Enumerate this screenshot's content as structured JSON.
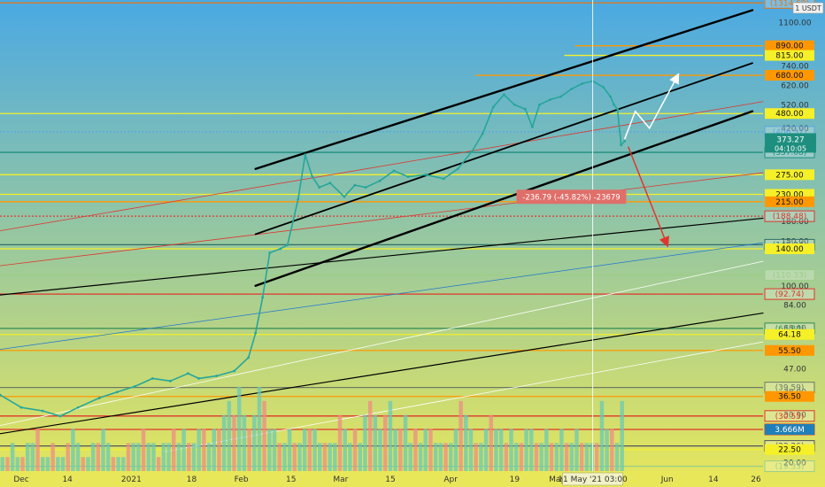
{
  "chart_data": {
    "type": "line",
    "title": "",
    "xlabel": "",
    "ylabel": "",
    "currency": "USD",
    "scale": "log",
    "ylim": [
      18.5,
      1350
    ],
    "xlim": [
      "2020-11-25",
      "2021-06-28"
    ],
    "grid": false,
    "background": {
      "top": "#4aa9e3",
      "bottom": "#e8e75a"
    },
    "x_ticks": [
      {
        "label": "Dec",
        "date": "2020-12-01"
      },
      {
        "label": "14",
        "date": "2020-12-14"
      },
      {
        "label": "2021",
        "date": "2021-01-01"
      },
      {
        "label": "18",
        "date": "2021-01-18"
      },
      {
        "label": "Feb",
        "date": "2021-02-01"
      },
      {
        "label": "15",
        "date": "2021-02-15"
      },
      {
        "label": "Mar",
        "date": "2021-03-01"
      },
      {
        "label": "15",
        "date": "2021-03-15"
      },
      {
        "label": "Apr",
        "date": "2021-04-01"
      },
      {
        "label": "19",
        "date": "2021-04-19"
      },
      {
        "label": "May",
        "date": "2021-05-01"
      },
      {
        "label": "Jun",
        "date": "2021-06-01"
      },
      {
        "label": "14",
        "date": "2021-06-14"
      },
      {
        "label": "26",
        "date": "2021-06-26"
      }
    ],
    "crosshair": {
      "date": "2021-05-11",
      "label": "11 May '21",
      "time": "03:00"
    },
    "y_ticks": [
      {
        "label": "1100.00",
        "value": 1100
      },
      {
        "label": "740.00",
        "value": 740
      },
      {
        "label": "620.00",
        "value": 620
      },
      {
        "label": "520.00",
        "value": 520
      },
      {
        "label": "420.00",
        "value": 420
      },
      {
        "label": "180.00",
        "value": 180
      },
      {
        "label": "150.00",
        "value": 150
      },
      {
        "label": "100.00",
        "value": 100
      },
      {
        "label": "84.00",
        "value": 84
      },
      {
        "label": "68.00",
        "value": 68
      },
      {
        "label": "47.00",
        "value": 47
      },
      {
        "label": "38.00",
        "value": 38
      },
      {
        "label": "30.90",
        "value": 30.9
      },
      {
        "label": "20.00",
        "value": 20
      }
    ],
    "h_levels": [
      {
        "value": 1314.69,
        "label": "(1314.69)",
        "color": "#e6760f",
        "style": "solid",
        "tag": "outline"
      },
      {
        "value": 890,
        "label": "890.00",
        "color": "#ff9800",
        "style": "solid",
        "tag": "fill",
        "xstart_date": "2021-05-06"
      },
      {
        "value": 815,
        "label": "815.00",
        "color": "#f5f028",
        "style": "solid",
        "tag": "fill",
        "xstart_date": "2021-05-03"
      },
      {
        "value": 680,
        "label": "680.00",
        "color": "#ff9800",
        "style": "solid",
        "tag": "fill",
        "xstart_date": "2021-04-08"
      },
      {
        "value": 480,
        "label": "480.00",
        "color": "#f5f028",
        "style": "solid",
        "tag": "fill"
      },
      {
        "value": 406.52,
        "label": "(406.52)",
        "color": "#5aa8e0",
        "style": "dotted",
        "tag": "outline"
      },
      {
        "value": 337.08,
        "label": "(337.08)",
        "color": "#1e8f7e",
        "style": "solid",
        "tag": "outline"
      },
      {
        "value": 275,
        "label": "275.00",
        "color": "#f5f028",
        "style": "solid",
        "tag": "fill"
      },
      {
        "value": 230,
        "label": "230.00",
        "color": "#f5f028",
        "style": "solid",
        "tag": "fill"
      },
      {
        "value": 215,
        "label": "215.00",
        "color": "#ff9800",
        "style": "solid",
        "tag": "fill"
      },
      {
        "value": 188.48,
        "label": "(188.48)",
        "color": "#e0362e",
        "style": "dotted",
        "tag": "outline"
      },
      {
        "value": 145.34,
        "label": "(145.34)",
        "color": "#2f6f6a",
        "style": "solid",
        "tag": "outline"
      },
      {
        "value": 140,
        "label": "140.00",
        "color": "#f5f028",
        "style": "solid",
        "tag": "fill"
      },
      {
        "value": 110.33,
        "label": "(110.33)",
        "color": "#9ccf86",
        "style": "solid",
        "tag": "outline"
      },
      {
        "value": 92.74,
        "label": "(92.74)",
        "color": "#e0362e",
        "style": "solid",
        "tag": "outline"
      },
      {
        "value": 67.84,
        "label": "(67.84)",
        "color": "#2e8b57",
        "style": "solid",
        "tag": "outline"
      },
      {
        "value": 64.18,
        "label": "64.18",
        "color": "#f5f028",
        "style": "solid",
        "tag": "fill"
      },
      {
        "value": 55.5,
        "label": "55.50",
        "color": "#ff9800",
        "style": "solid",
        "tag": "fill"
      },
      {
        "value": 39.59,
        "label": "(39.59)",
        "color": "#6c7a64",
        "style": "solid",
        "tag": "outline"
      },
      {
        "value": 36.5,
        "label": "36.50",
        "color": "#ff9800",
        "style": "solid",
        "tag": "fill"
      },
      {
        "value": 30.55,
        "label": "(30.55)",
        "color": "#e0362e",
        "style": "solid",
        "tag": "outline"
      },
      {
        "value": 27.03,
        "label": "(27.03)",
        "color": "#e0362e",
        "style": "solid",
        "tag": "outline"
      },
      {
        "value": 23.26,
        "label": "(23.26)",
        "color": "#555555",
        "style": "solid",
        "tag": "outline"
      },
      {
        "value": 22.5,
        "label": "22.50",
        "color": "#f5f028",
        "style": "solid",
        "tag": "fill"
      },
      {
        "value": 19.33,
        "label": "(19.33)",
        "color": "#9ccf86",
        "style": "solid",
        "tag": "outline"
      }
    ],
    "channel_lines": [
      {
        "d1": "2020-11-25",
        "v1": 26,
        "d2": "2021-06-28",
        "v2": 78,
        "color": "#000000",
        "width": 1.2
      },
      {
        "d1": "2020-11-25",
        "v1": 92,
        "d2": "2021-06-28",
        "v2": 185,
        "color": "#000000",
        "width": 1.2
      },
      {
        "d1": "2020-11-25",
        "v1": 165,
        "d2": "2021-06-28",
        "v2": 535,
        "color": "#e0362e",
        "width": 0.8
      },
      {
        "d1": "2020-11-25",
        "v1": 28,
        "d2": "2021-06-28",
        "v2": 125,
        "color": "#ffffff",
        "width": 0.8
      },
      {
        "d1": "2020-11-25",
        "v1": 56,
        "d2": "2021-06-28",
        "v2": 148,
        "color": "#1f77d0",
        "width": 0.8
      },
      {
        "d1": "2021-01-10",
        "v1": 22,
        "d2": "2021-06-28",
        "v2": 60,
        "color": "#ffffff",
        "width": 0.8
      },
      {
        "d1": "2020-11-25",
        "v1": 120,
        "d2": "2021-06-28",
        "v2": 280,
        "color": "#e0362e",
        "width": 0.8
      },
      {
        "d1": "2021-02-05",
        "v1": 290,
        "d2": "2021-06-25",
        "v2": 1230,
        "color": "#000000",
        "width": 2.4
      },
      {
        "d1": "2021-02-05",
        "v1": 160,
        "d2": "2021-06-25",
        "v2": 760,
        "color": "#000000",
        "width": 1.8
      },
      {
        "d1": "2021-02-05",
        "v1": 100,
        "d2": "2021-06-25",
        "v2": 490,
        "color": "#000000",
        "width": 2.4
      }
    ],
    "price_series": [
      {
        "date": "2020-11-25",
        "value": 37
      },
      {
        "date": "2020-12-01",
        "value": 33
      },
      {
        "date": "2020-12-07",
        "value": 32
      },
      {
        "date": "2020-12-12",
        "value": 30.5
      },
      {
        "date": "2020-12-17",
        "value": 33
      },
      {
        "date": "2020-12-23",
        "value": 36
      },
      {
        "date": "2020-12-28",
        "value": 38
      },
      {
        "date": "2021-01-02",
        "value": 40
      },
      {
        "date": "2021-01-07",
        "value": 43
      },
      {
        "date": "2021-01-12",
        "value": 42
      },
      {
        "date": "2021-01-17",
        "value": 45
      },
      {
        "date": "2021-01-20",
        "value": 43
      },
      {
        "date": "2021-01-25",
        "value": 44
      },
      {
        "date": "2021-01-30",
        "value": 46
      },
      {
        "date": "2021-02-03",
        "value": 52
      },
      {
        "date": "2021-02-05",
        "value": 65
      },
      {
        "date": "2021-02-07",
        "value": 90
      },
      {
        "date": "2021-02-09",
        "value": 135
      },
      {
        "date": "2021-02-12",
        "value": 140
      },
      {
        "date": "2021-02-14",
        "value": 145
      },
      {
        "date": "2021-02-17",
        "value": 220
      },
      {
        "date": "2021-02-19",
        "value": 330
      },
      {
        "date": "2021-02-21",
        "value": 270
      },
      {
        "date": "2021-02-23",
        "value": 245
      },
      {
        "date": "2021-02-26",
        "value": 255
      },
      {
        "date": "2021-03-02",
        "value": 225
      },
      {
        "date": "2021-03-05",
        "value": 250
      },
      {
        "date": "2021-03-08",
        "value": 245
      },
      {
        "date": "2021-03-12",
        "value": 260
      },
      {
        "date": "2021-03-16",
        "value": 285
      },
      {
        "date": "2021-03-20",
        "value": 270
      },
      {
        "date": "2021-03-25",
        "value": 275
      },
      {
        "date": "2021-03-30",
        "value": 265
      },
      {
        "date": "2021-04-03",
        "value": 290
      },
      {
        "date": "2021-04-07",
        "value": 340
      },
      {
        "date": "2021-04-10",
        "value": 400
      },
      {
        "date": "2021-04-13",
        "value": 510
      },
      {
        "date": "2021-04-16",
        "value": 570
      },
      {
        "date": "2021-04-19",
        "value": 520
      },
      {
        "date": "2021-04-22",
        "value": 500
      },
      {
        "date": "2021-04-24",
        "value": 425
      },
      {
        "date": "2021-04-26",
        "value": 520
      },
      {
        "date": "2021-04-29",
        "value": 545
      },
      {
        "date": "2021-05-02",
        "value": 560
      },
      {
        "date": "2021-05-05",
        "value": 600
      },
      {
        "date": "2021-05-08",
        "value": 630
      },
      {
        "date": "2021-05-11",
        "value": 645
      },
      {
        "date": "2021-05-14",
        "value": 610
      },
      {
        "date": "2021-05-16",
        "value": 560
      },
      {
        "date": "2021-05-17",
        "value": 520
      },
      {
        "date": "2021-05-18",
        "value": 500
      },
      {
        "date": "2021-05-19",
        "value": 360
      },
      {
        "date": "2021-05-20",
        "value": 373.27
      }
    ],
    "price_color": "#26a69a",
    "volume": [
      1,
      1,
      2,
      1,
      1,
      2,
      2,
      3,
      1,
      1,
      2,
      1,
      1,
      2,
      3,
      2,
      1,
      1,
      2,
      2,
      3,
      2,
      1,
      1,
      1,
      2,
      2,
      2,
      3,
      2,
      2,
      1,
      2,
      2,
      3,
      2,
      3,
      2,
      2,
      3,
      3,
      2,
      3,
      3,
      4,
      5,
      4,
      6,
      4,
      3,
      4,
      6,
      5,
      3,
      3,
      2,
      2,
      3,
      2,
      2,
      3,
      3,
      3,
      2,
      2,
      2,
      2,
      4,
      3,
      2,
      3,
      2,
      4,
      5,
      4,
      3,
      4,
      5,
      3,
      3,
      4,
      2,
      3,
      2,
      3,
      3,
      2,
      2,
      2,
      2,
      3,
      5,
      4,
      3,
      2,
      2,
      3,
      4,
      3,
      3,
      2,
      3,
      2,
      2,
      3,
      3,
      2,
      2,
      3,
      2,
      2,
      3,
      2,
      2,
      3,
      2,
      2,
      2,
      2,
      5,
      3,
      3,
      2,
      5
    ],
    "volume_current_label": "3.666M",
    "current_price": {
      "value": 373.27,
      "label": "373.27",
      "countdown": "04:10:05",
      "color": "#1e8f7e"
    },
    "axis_badge": {
      "label": "1 USDT",
      "color": "#f0f0f0"
    },
    "measure": {
      "label": "-236.79 (-45.82%) -23679",
      "color": "#e06f6a"
    },
    "projections": {
      "up": [
        {
          "date": "2021-05-20",
          "value": 380
        },
        {
          "date": "2021-05-23",
          "value": 490
        },
        {
          "date": "2021-05-27",
          "value": 420
        },
        {
          "date": "2021-06-04",
          "value": 680
        }
      ],
      "down": [
        {
          "date": "2021-05-21",
          "value": 355
        },
        {
          "date": "2021-06-01",
          "value": 145
        }
      ]
    }
  }
}
